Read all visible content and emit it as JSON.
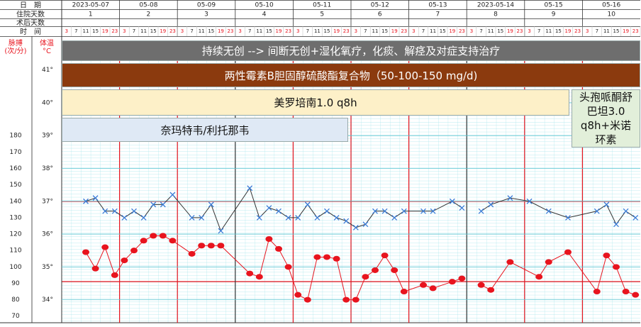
{
  "chart_data": {
    "type": "line",
    "header_labels": [
      "日　期",
      "住院天数",
      "术后天数",
      "时　间"
    ],
    "pulse_label": "脉搏",
    "pulse_unit": "(次/分)",
    "temp_label": "体温",
    "temp_unit": "°C",
    "dates": [
      "2023-05-07",
      "05-08",
      "05-09",
      "05-10",
      "05-11",
      "05-12",
      "05-13",
      "2023-05-14",
      "05-15",
      "05-16"
    ],
    "hospital_days": [
      "1",
      "2",
      "3",
      "4",
      "5",
      "6",
      "7",
      "8",
      "9",
      "10"
    ],
    "categories": [
      "3",
      "7",
      "11",
      "15",
      "19",
      "23",
      "3",
      "7",
      "11",
      "15",
      "19",
      "23",
      "3",
      "7",
      "11",
      "15",
      "19",
      "23",
      "3",
      "7",
      "11",
      "15",
      "19",
      "23",
      "3",
      "7",
      "11",
      "15",
      "19",
      "23",
      "3",
      "7",
      "11",
      "15",
      "19",
      "23",
      "3",
      "7",
      "11",
      "15",
      "19",
      "23",
      "3",
      "7",
      "11",
      "15",
      "19",
      "23",
      "3",
      "7",
      "11",
      "15",
      "19",
      "23",
      "3",
      "7",
      "11",
      "15",
      "19",
      "23"
    ],
    "xlim": [
      -0.5,
      59.5
    ],
    "ylim": [
      33.3,
      41.9
    ],
    "yticks": [
      {
        "value": 41,
        "label": "41°"
      },
      {
        "value": 40,
        "label": "40°"
      },
      {
        "value": 39,
        "label": "39°"
      },
      {
        "value": 38,
        "label": "38°"
      },
      {
        "value": 37,
        "label": "37°"
      },
      {
        "value": 36,
        "label": "36°"
      },
      {
        "value": 35,
        "label": "35°"
      },
      {
        "value": 34,
        "label": "34°"
      }
    ],
    "y2lim": [
      66,
      238
    ],
    "y2ticks": [
      180,
      170,
      160,
      150,
      140,
      130,
      120,
      110,
      100,
      90,
      80,
      70
    ],
    "grid": true,
    "series": [
      {
        "color": "#333333",
        "marker_color": "#3b7dd8",
        "x": [
          2,
          3,
          4,
          5,
          6,
          7,
          8,
          9,
          10,
          11,
          13,
          14,
          15,
          16,
          19,
          20,
          21,
          22,
          23,
          24,
          25,
          26,
          27,
          28,
          29,
          30,
          31,
          32,
          33,
          34,
          35,
          37,
          38,
          40,
          41,
          null,
          43,
          44,
          46,
          48,
          50,
          52,
          55,
          56,
          57,
          58,
          59
        ],
        "values": [
          37.0,
          37.1,
          36.7,
          36.7,
          36.5,
          36.7,
          36.5,
          36.9,
          36.9,
          37.2,
          36.5,
          36.5,
          36.9,
          36.1,
          37.4,
          36.5,
          36.8,
          36.7,
          36.5,
          36.5,
          36.9,
          36.5,
          36.7,
          36.5,
          36.4,
          36.2,
          36.3,
          36.7,
          36.7,
          36.5,
          36.7,
          36.7,
          36.7,
          37.0,
          36.8,
          null,
          36.7,
          36.9,
          37.1,
          37.0,
          36.7,
          36.5,
          36.7,
          36.9,
          36.3,
          36.7,
          36.5
        ]
      },
      {
        "color": "#e8141e",
        "marker_color": "#e8141e",
        "axis": "y2",
        "x": [
          2,
          3,
          4,
          5,
          6,
          7,
          8,
          9,
          10,
          11,
          13,
          14,
          15,
          16,
          19,
          20,
          21,
          22,
          23,
          24,
          25,
          26,
          27,
          28,
          29,
          30,
          31,
          32,
          33,
          34,
          35,
          37,
          38,
          40,
          41,
          null,
          43,
          44,
          46,
          49,
          50,
          52,
          55,
          56,
          57,
          58,
          59
        ],
        "values": [
          109,
          99,
          112,
          95,
          104,
          110,
          116,
          119,
          119,
          116,
          108,
          113,
          113,
          113,
          96,
          94,
          117,
          111,
          100,
          83,
          80,
          106,
          106,
          105,
          80,
          80,
          94,
          98,
          107,
          98,
          85,
          89,
          87,
          91,
          93,
          null,
          89,
          86,
          103,
          94,
          103,
          109,
          85,
          107,
          100,
          85,
          83
        ]
      }
    ],
    "annotations": [
      {
        "text": "持续无创 --> 间断无创+湿化氧疗，化痰、解痉及对症支持治疗",
        "color": "#6e6e6e",
        "text_color": "#ffffff"
      },
      {
        "text": "两性霉素B胆固醇硫酸酯复合物（50-100-150 mg/d)",
        "color": "#8b3a0e",
        "text_color": "#ffffff"
      },
      {
        "text": "美罗培南1.0 q8h",
        "color": "#fdf0c8",
        "text_color": "#111111"
      },
      {
        "text": "奈玛特韦/利托那韦",
        "color": "#dfe9f5",
        "text_color": "#111111"
      },
      {
        "text": "头孢哌酮舒巴坦3.0 q8h+米诺环素",
        "color": "#e2efda",
        "text_color": "#111111"
      }
    ]
  }
}
